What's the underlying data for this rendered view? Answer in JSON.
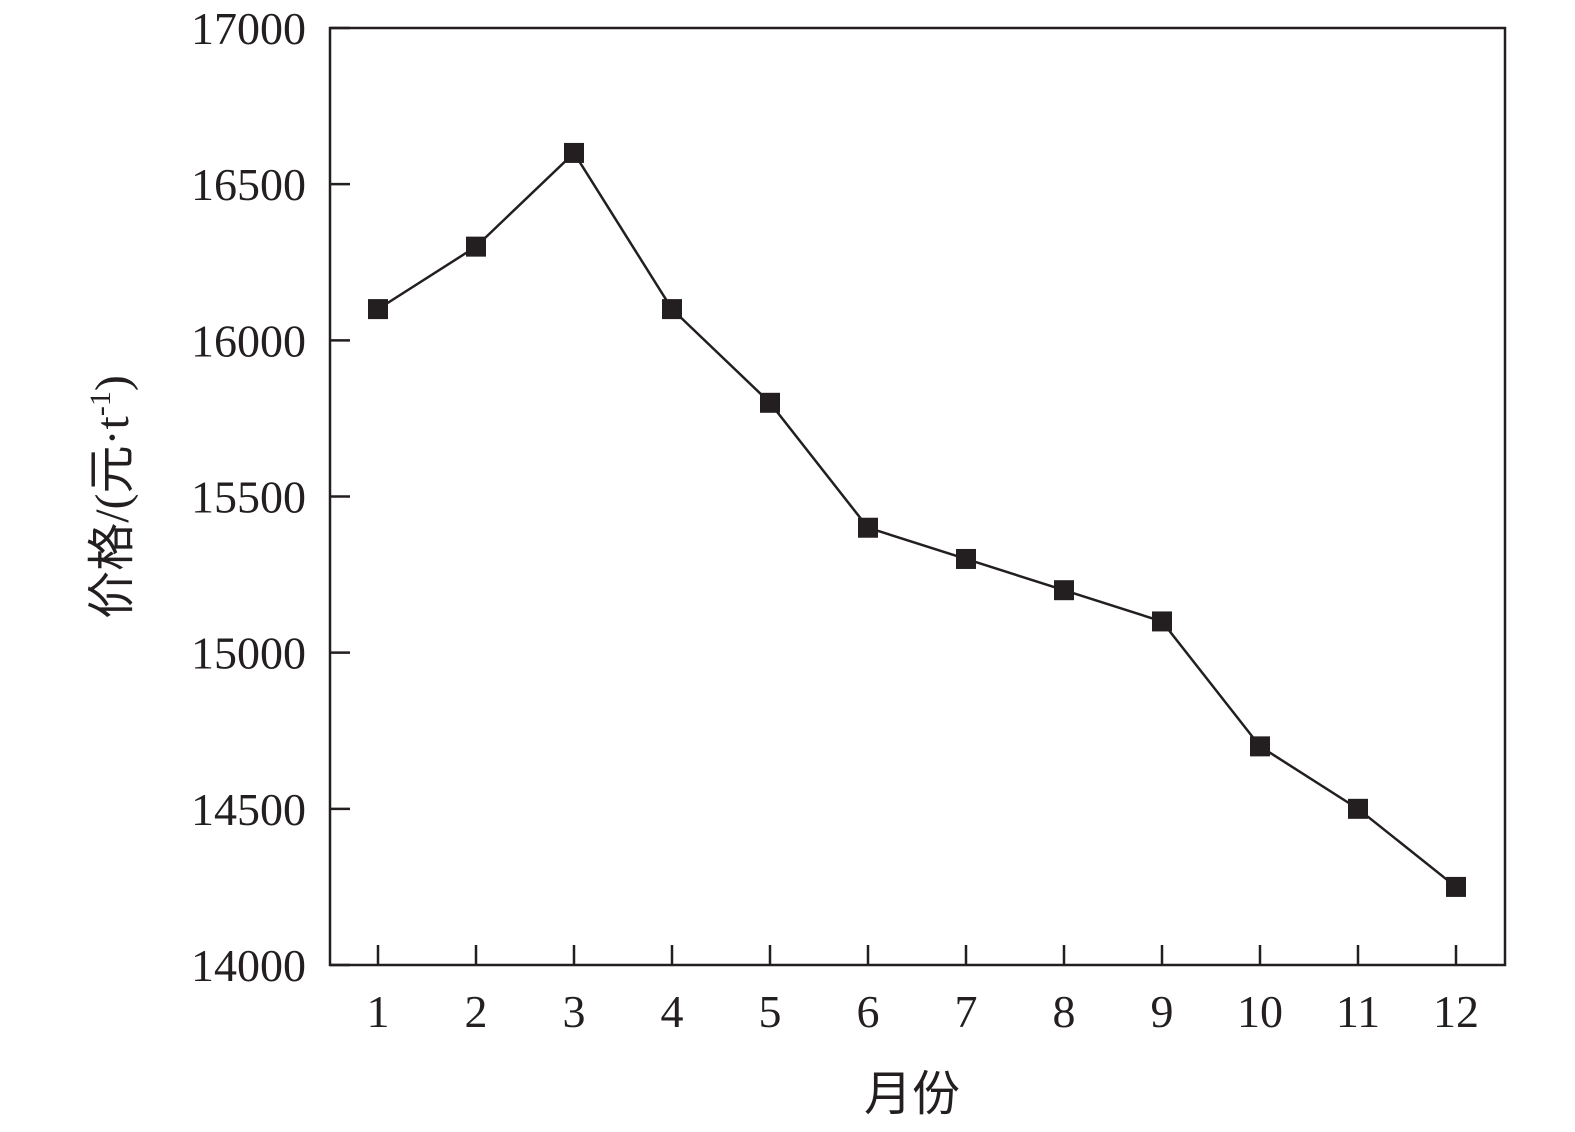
{
  "chart_data": {
    "type": "line",
    "title": "",
    "xlabel": "月份",
    "ylabel": "价格/(元·t",
    "ylabel_sup": "-1",
    "ylabel_close": ")",
    "x": [
      1,
      2,
      3,
      4,
      5,
      6,
      7,
      8,
      9,
      10,
      11,
      12
    ],
    "x_tick_labels": [
      "1",
      "2",
      "3",
      "4",
      "5",
      "6",
      "7",
      "8",
      "9",
      "10",
      "11",
      "12"
    ],
    "y_ticks": [
      14000,
      14500,
      15000,
      15500,
      16000,
      16500,
      17000
    ],
    "y_tick_labels": [
      "14000",
      "14500",
      "15000",
      "15500",
      "16000",
      "16500",
      "17000"
    ],
    "ylim": [
      14000,
      17000
    ],
    "xlim": [
      0.5,
      12.5
    ],
    "grid": false,
    "marker": "square",
    "colors": {
      "line": "#231f20",
      "marker": "#231f20"
    },
    "series": [
      {
        "values": [
          16100,
          16300,
          16600,
          16100,
          15800,
          15400,
          15300,
          15200,
          15100,
          14700,
          14500,
          14250
        ]
      }
    ]
  }
}
